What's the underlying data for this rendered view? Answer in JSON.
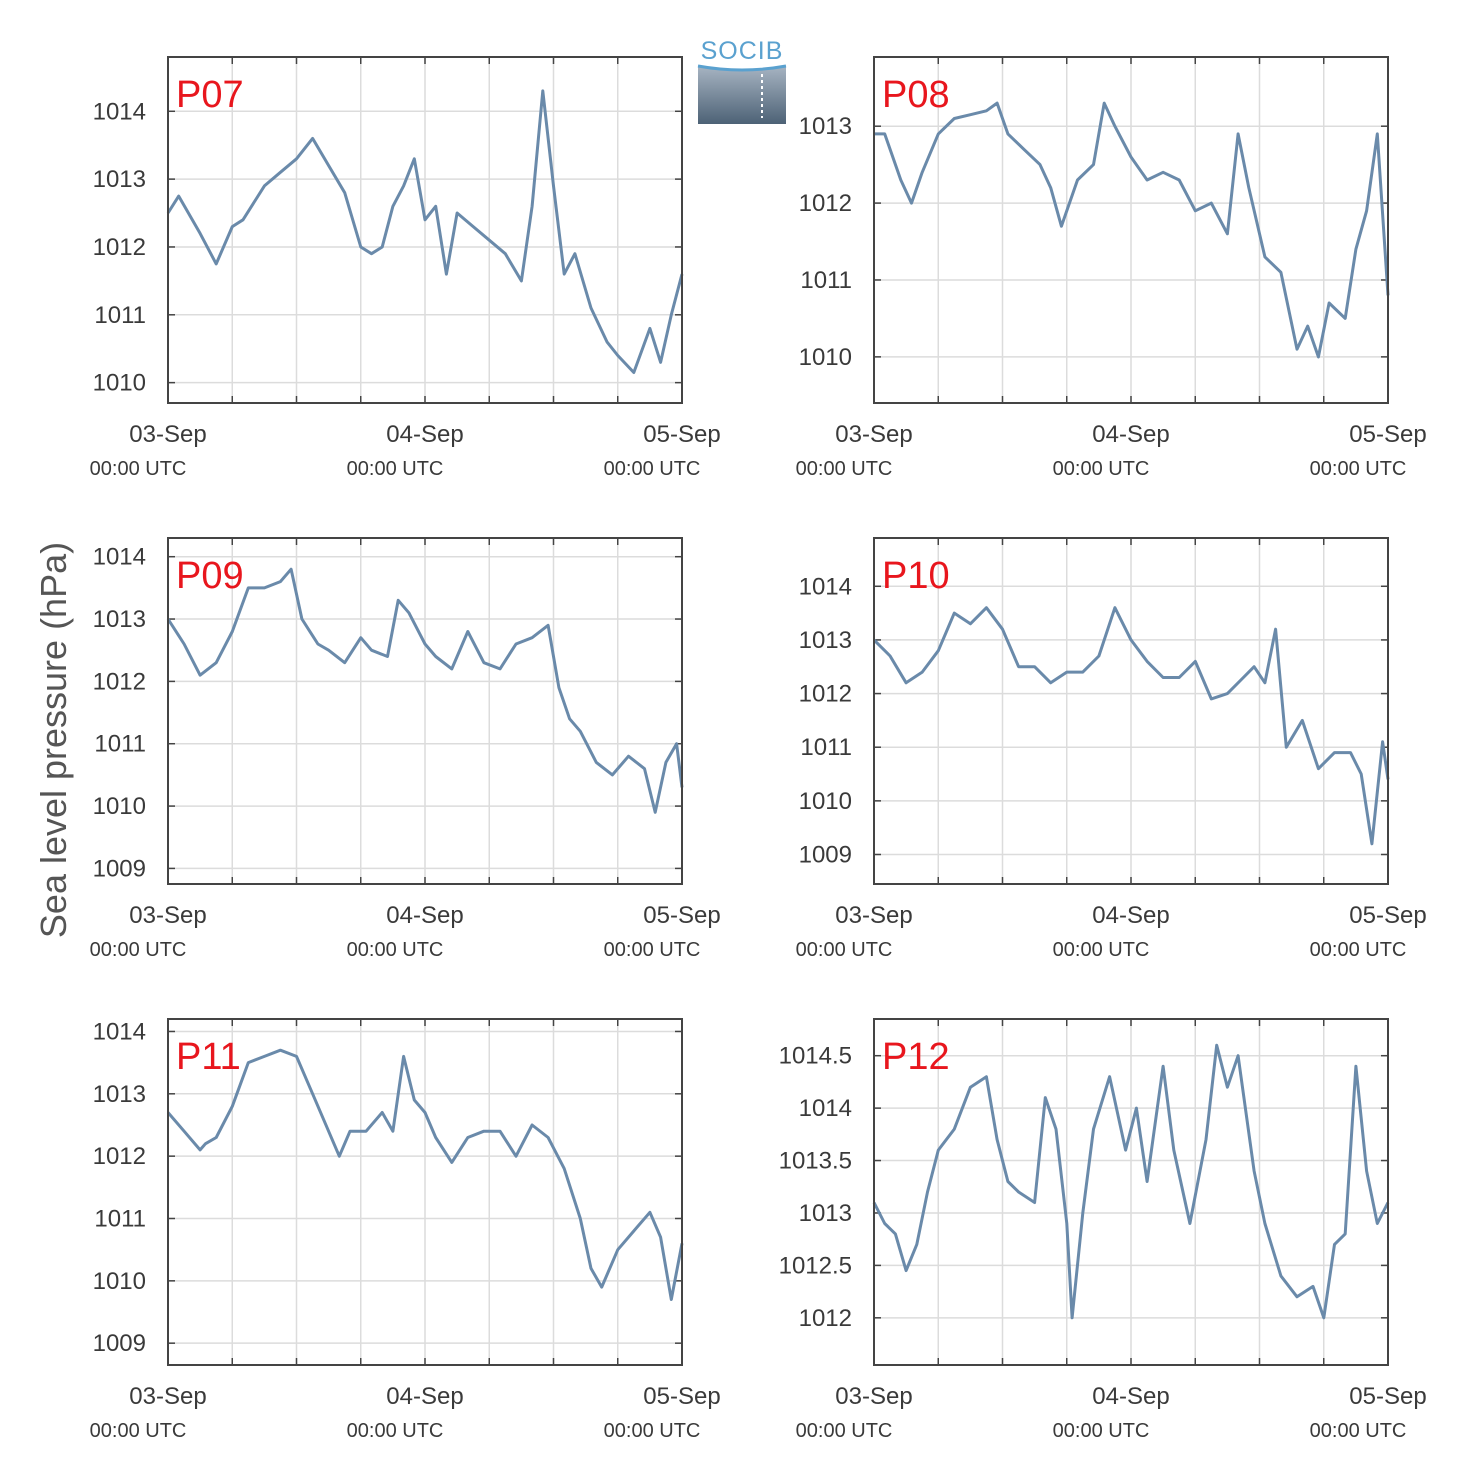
{
  "ylabel": "Sea level pressure (hPa)",
  "logo": {
    "text": "SOCIB"
  },
  "colors": {
    "line": "#6a8aaa",
    "label": "#e8161d",
    "grid": "#dcdcdc",
    "frame": "#444444"
  },
  "chart_data": [
    {
      "type": "line",
      "name": "P07",
      "ylim": [
        1009.7,
        1014.8
      ],
      "yticks": [
        {
          "v": 1010,
          "label": "1010"
        },
        {
          "v": 1011,
          "label": "1011"
        },
        {
          "v": 1012,
          "label": "1012"
        },
        {
          "v": 1013,
          "label": "1013"
        },
        {
          "v": 1014,
          "label": "1014"
        }
      ],
      "xticks": [
        {
          "date": "03-Sep",
          "time": "00:00 UTC"
        },
        {
          "date": "04-Sep",
          "time": "00:00 UTC"
        },
        {
          "date": "05-Sep",
          "time": "00:00 UTC"
        }
      ],
      "x_hours": [
        0,
        1,
        3,
        4.5,
        6,
        7,
        9,
        10.5,
        12,
        13.5,
        15,
        16.5,
        18,
        19,
        20,
        21,
        22,
        23,
        24,
        25,
        26,
        27,
        28.5,
        30,
        31.5,
        33,
        34,
        35,
        36,
        37,
        38,
        39.5,
        41,
        42,
        43.5,
        45,
        46,
        47,
        48
      ],
      "values": [
        1012.5,
        1012.75,
        1012.2,
        1011.75,
        1012.3,
        1012.4,
        1012.9,
        1013.1,
        1013.3,
        1013.6,
        1013.2,
        1012.8,
        1012.0,
        1011.9,
        1012.0,
        1012.6,
        1012.9,
        1013.3,
        1012.4,
        1012.6,
        1011.6,
        1012.5,
        1012.3,
        1012.1,
        1011.9,
        1011.5,
        1012.6,
        1014.3,
        1012.9,
        1011.6,
        1011.9,
        1011.1,
        1010.6,
        1010.4,
        1010.15,
        1010.8,
        1010.3,
        1011.0,
        1011.6
      ]
    },
    {
      "type": "line",
      "name": "P08",
      "ylim": [
        1009.4,
        1013.9
      ],
      "yticks": [
        {
          "v": 1010,
          "label": "1010"
        },
        {
          "v": 1011,
          "label": "1011"
        },
        {
          "v": 1012,
          "label": "1012"
        },
        {
          "v": 1013,
          "label": "1013"
        }
      ],
      "xticks": [
        {
          "date": "03-Sep",
          "time": "00:00 UTC"
        },
        {
          "date": "04-Sep",
          "time": "00:00 UTC"
        },
        {
          "date": "05-Sep",
          "time": "00:00 UTC"
        }
      ],
      "x_hours": [
        0,
        1,
        2.5,
        3.5,
        4.5,
        6,
        7.5,
        9,
        10.5,
        11.5,
        12.5,
        14,
        15.5,
        16.5,
        17.5,
        19,
        20.5,
        21.5,
        22.5,
        24,
        25.5,
        27,
        28.5,
        30,
        31.5,
        33,
        34,
        35,
        36.5,
        38,
        39.5,
        40.5,
        41.5,
        42.5,
        44,
        45,
        46,
        47,
        48
      ],
      "values": [
        1012.9,
        1012.9,
        1012.3,
        1012.0,
        1012.4,
        1012.9,
        1013.1,
        1013.15,
        1013.2,
        1013.3,
        1012.9,
        1012.7,
        1012.5,
        1012.2,
        1011.7,
        1012.3,
        1012.5,
        1013.3,
        1013.0,
        1012.6,
        1012.3,
        1012.4,
        1012.3,
        1011.9,
        1012.0,
        1011.6,
        1012.9,
        1012.2,
        1011.3,
        1011.1,
        1010.1,
        1010.4,
        1010.0,
        1010.7,
        1010.5,
        1011.4,
        1011.9,
        1012.9,
        1010.8
      ]
    },
    {
      "type": "line",
      "name": "P09",
      "ylim": [
        1008.75,
        1014.3
      ],
      "yticks": [
        {
          "v": 1009,
          "label": "1009"
        },
        {
          "v": 1010,
          "label": "1010"
        },
        {
          "v": 1011,
          "label": "1011"
        },
        {
          "v": 1012,
          "label": "1012"
        },
        {
          "v": 1013,
          "label": "1013"
        },
        {
          "v": 1014,
          "label": "1014"
        }
      ],
      "xticks": [
        {
          "date": "03-Sep",
          "time": "00:00 UTC"
        },
        {
          "date": "04-Sep",
          "time": "00:00 UTC"
        },
        {
          "date": "05-Sep",
          "time": "00:00 UTC"
        }
      ],
      "x_hours": [
        0,
        1.5,
        3,
        4.5,
        6,
        7.5,
        9,
        10.5,
        11.5,
        12.5,
        14,
        15,
        16.5,
        18,
        19,
        20.5,
        21.5,
        22.5,
        24,
        25,
        26.5,
        28,
        29.5,
        31,
        32.5,
        34,
        35.5,
        36.5,
        37.5,
        38.5,
        40,
        41.5,
        43,
        44.5,
        45.5,
        46.5,
        47.5,
        48
      ],
      "values": [
        1013.0,
        1012.6,
        1012.1,
        1012.3,
        1012.8,
        1013.5,
        1013.5,
        1013.6,
        1013.8,
        1013.0,
        1012.6,
        1012.5,
        1012.3,
        1012.7,
        1012.5,
        1012.4,
        1013.3,
        1013.1,
        1012.6,
        1012.4,
        1012.2,
        1012.8,
        1012.3,
        1012.2,
        1012.6,
        1012.7,
        1012.9,
        1011.9,
        1011.4,
        1011.2,
        1010.7,
        1010.5,
        1010.8,
        1010.6,
        1009.9,
        1010.7,
        1011.0,
        1010.3
      ]
    },
    {
      "type": "line",
      "name": "P10",
      "ylim": [
        1008.45,
        1014.9
      ],
      "yticks": [
        {
          "v": 1009,
          "label": "1009"
        },
        {
          "v": 1010,
          "label": "1010"
        },
        {
          "v": 1011,
          "label": "1011"
        },
        {
          "v": 1012,
          "label": "1012"
        },
        {
          "v": 1013,
          "label": "1013"
        },
        {
          "v": 1014,
          "label": "1014"
        }
      ],
      "xticks": [
        {
          "date": "03-Sep",
          "time": "00:00 UTC"
        },
        {
          "date": "04-Sep",
          "time": "00:00 UTC"
        },
        {
          "date": "05-Sep",
          "time": "00:00 UTC"
        }
      ],
      "x_hours": [
        0,
        1.5,
        3,
        4.5,
        6,
        7.5,
        9,
        10.5,
        12,
        13.5,
        15,
        16.5,
        18,
        19.5,
        21,
        22.5,
        24,
        25.5,
        27,
        28.5,
        30,
        31.5,
        33,
        34.5,
        35.5,
        36.5,
        37.5,
        38.5,
        40,
        41.5,
        43,
        44.5,
        45.5,
        46.5,
        47.5,
        48
      ],
      "values": [
        1013.0,
        1012.7,
        1012.2,
        1012.4,
        1012.8,
        1013.5,
        1013.3,
        1013.6,
        1013.2,
        1012.5,
        1012.5,
        1012.2,
        1012.4,
        1012.4,
        1012.7,
        1013.6,
        1013.0,
        1012.6,
        1012.3,
        1012.3,
        1012.6,
        1011.9,
        1012.0,
        1012.3,
        1012.5,
        1012.2,
        1013.2,
        1011.0,
        1011.5,
        1010.6,
        1010.9,
        1010.9,
        1010.5,
        1009.2,
        1011.1,
        1010.4
      ]
    },
    {
      "type": "line",
      "name": "P11",
      "ylim": [
        1008.65,
        1014.2
      ],
      "yticks": [
        {
          "v": 1009,
          "label": "1009"
        },
        {
          "v": 1010,
          "label": "1010"
        },
        {
          "v": 1011,
          "label": "1011"
        },
        {
          "v": 1012,
          "label": "1012"
        },
        {
          "v": 1013,
          "label": "1013"
        },
        {
          "v": 1014,
          "label": "1014"
        }
      ],
      "xticks": [
        {
          "date": "03-Sep",
          "time": "00:00 UTC"
        },
        {
          "date": "04-Sep",
          "time": "00:00 UTC"
        },
        {
          "date": "05-Sep",
          "time": "00:00 UTC"
        }
      ],
      "x_hours": [
        0,
        1.5,
        3,
        3.5,
        4.5,
        6,
        7.5,
        9,
        10.5,
        12,
        13.5,
        15,
        16,
        17,
        18.5,
        20,
        21,
        22,
        23,
        24,
        25,
        26.5,
        28,
        29.5,
        31,
        32.5,
        34,
        35.5,
        37,
        38.5,
        39.5,
        40.5,
        42,
        43.5,
        45,
        46,
        47,
        48
      ],
      "values": [
        1012.7,
        1012.4,
        1012.1,
        1012.2,
        1012.3,
        1012.8,
        1013.5,
        1013.6,
        1013.7,
        1013.6,
        1013.0,
        1012.4,
        1012.0,
        1012.4,
        1012.4,
        1012.7,
        1012.4,
        1013.6,
        1012.9,
        1012.7,
        1012.3,
        1011.9,
        1012.3,
        1012.4,
        1012.4,
        1012.0,
        1012.5,
        1012.3,
        1011.8,
        1011.0,
        1010.2,
        1009.9,
        1010.5,
        1010.8,
        1011.1,
        1010.7,
        1009.7,
        1010.6
      ]
    },
    {
      "type": "line",
      "name": "P12",
      "ylim": [
        1011.55,
        1014.85
      ],
      "yticks": [
        {
          "v": 1012,
          "label": "1012"
        },
        {
          "v": 1012.5,
          "label": "1012.5"
        },
        {
          "v": 1013,
          "label": "1013"
        },
        {
          "v": 1013.5,
          "label": "1013.5"
        },
        {
          "v": 1014,
          "label": "1014"
        },
        {
          "v": 1014.5,
          "label": "1014.5"
        }
      ],
      "xticks": [
        {
          "date": "03-Sep",
          "time": "00:00 UTC"
        },
        {
          "date": "04-Sep",
          "time": "00:00 UTC"
        },
        {
          "date": "05-Sep",
          "time": "00:00 UTC"
        }
      ],
      "x_hours": [
        0,
        1,
        2,
        3,
        4,
        5,
        6,
        7.5,
        9,
        10.5,
        11.5,
        12.5,
        13.5,
        15,
        16,
        17,
        18,
        18.5,
        19.5,
        20.5,
        22,
        23.5,
        24.5,
        25.5,
        27,
        28,
        29.5,
        31,
        32,
        33,
        34,
        35.5,
        36.5,
        38,
        39.5,
        41,
        42,
        43,
        44,
        45,
        46,
        47,
        48
      ],
      "values": [
        1013.1,
        1012.9,
        1012.8,
        1012.45,
        1012.7,
        1013.2,
        1013.6,
        1013.8,
        1014.2,
        1014.3,
        1013.7,
        1013.3,
        1013.2,
        1013.1,
        1014.1,
        1013.8,
        1012.9,
        1012.0,
        1013.0,
        1013.8,
        1014.3,
        1013.6,
        1014.0,
        1013.3,
        1014.4,
        1013.6,
        1012.9,
        1013.7,
        1014.6,
        1014.2,
        1014.5,
        1013.4,
        1012.9,
        1012.4,
        1012.2,
        1012.3,
        1012.0,
        1012.7,
        1012.8,
        1014.4,
        1013.4,
        1012.9,
        1013.1
      ]
    }
  ]
}
